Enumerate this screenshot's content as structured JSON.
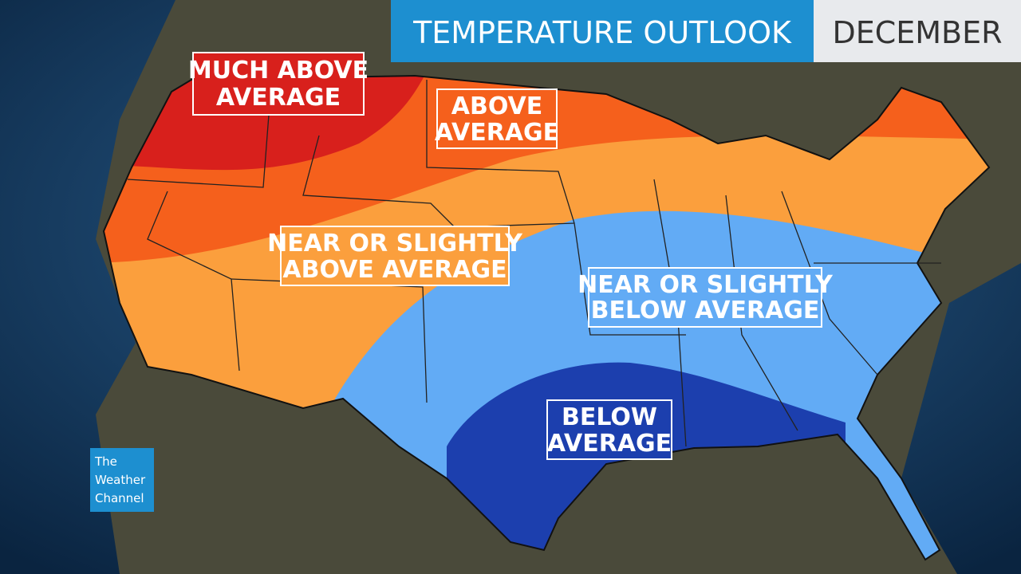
{
  "header": {
    "title": "TEMPERATURE OUTLOOK",
    "month": "DECEMBER"
  },
  "regions": [
    {
      "lines": [
        "MUCH ABOVE",
        "AVERAGE"
      ]
    },
    {
      "lines": [
        "ABOVE",
        "AVERAGE"
      ]
    },
    {
      "lines": [
        "NEAR OR SLIGHTLY",
        "ABOVE AVERAGE"
      ]
    },
    {
      "lines": [
        "NEAR OR SLIGHTLY",
        "BELOW AVERAGE"
      ]
    },
    {
      "lines": [
        "BELOW",
        "AVERAGE"
      ]
    }
  ],
  "logo": {
    "lines": [
      "The",
      "Weather",
      "Channel"
    ]
  }
}
